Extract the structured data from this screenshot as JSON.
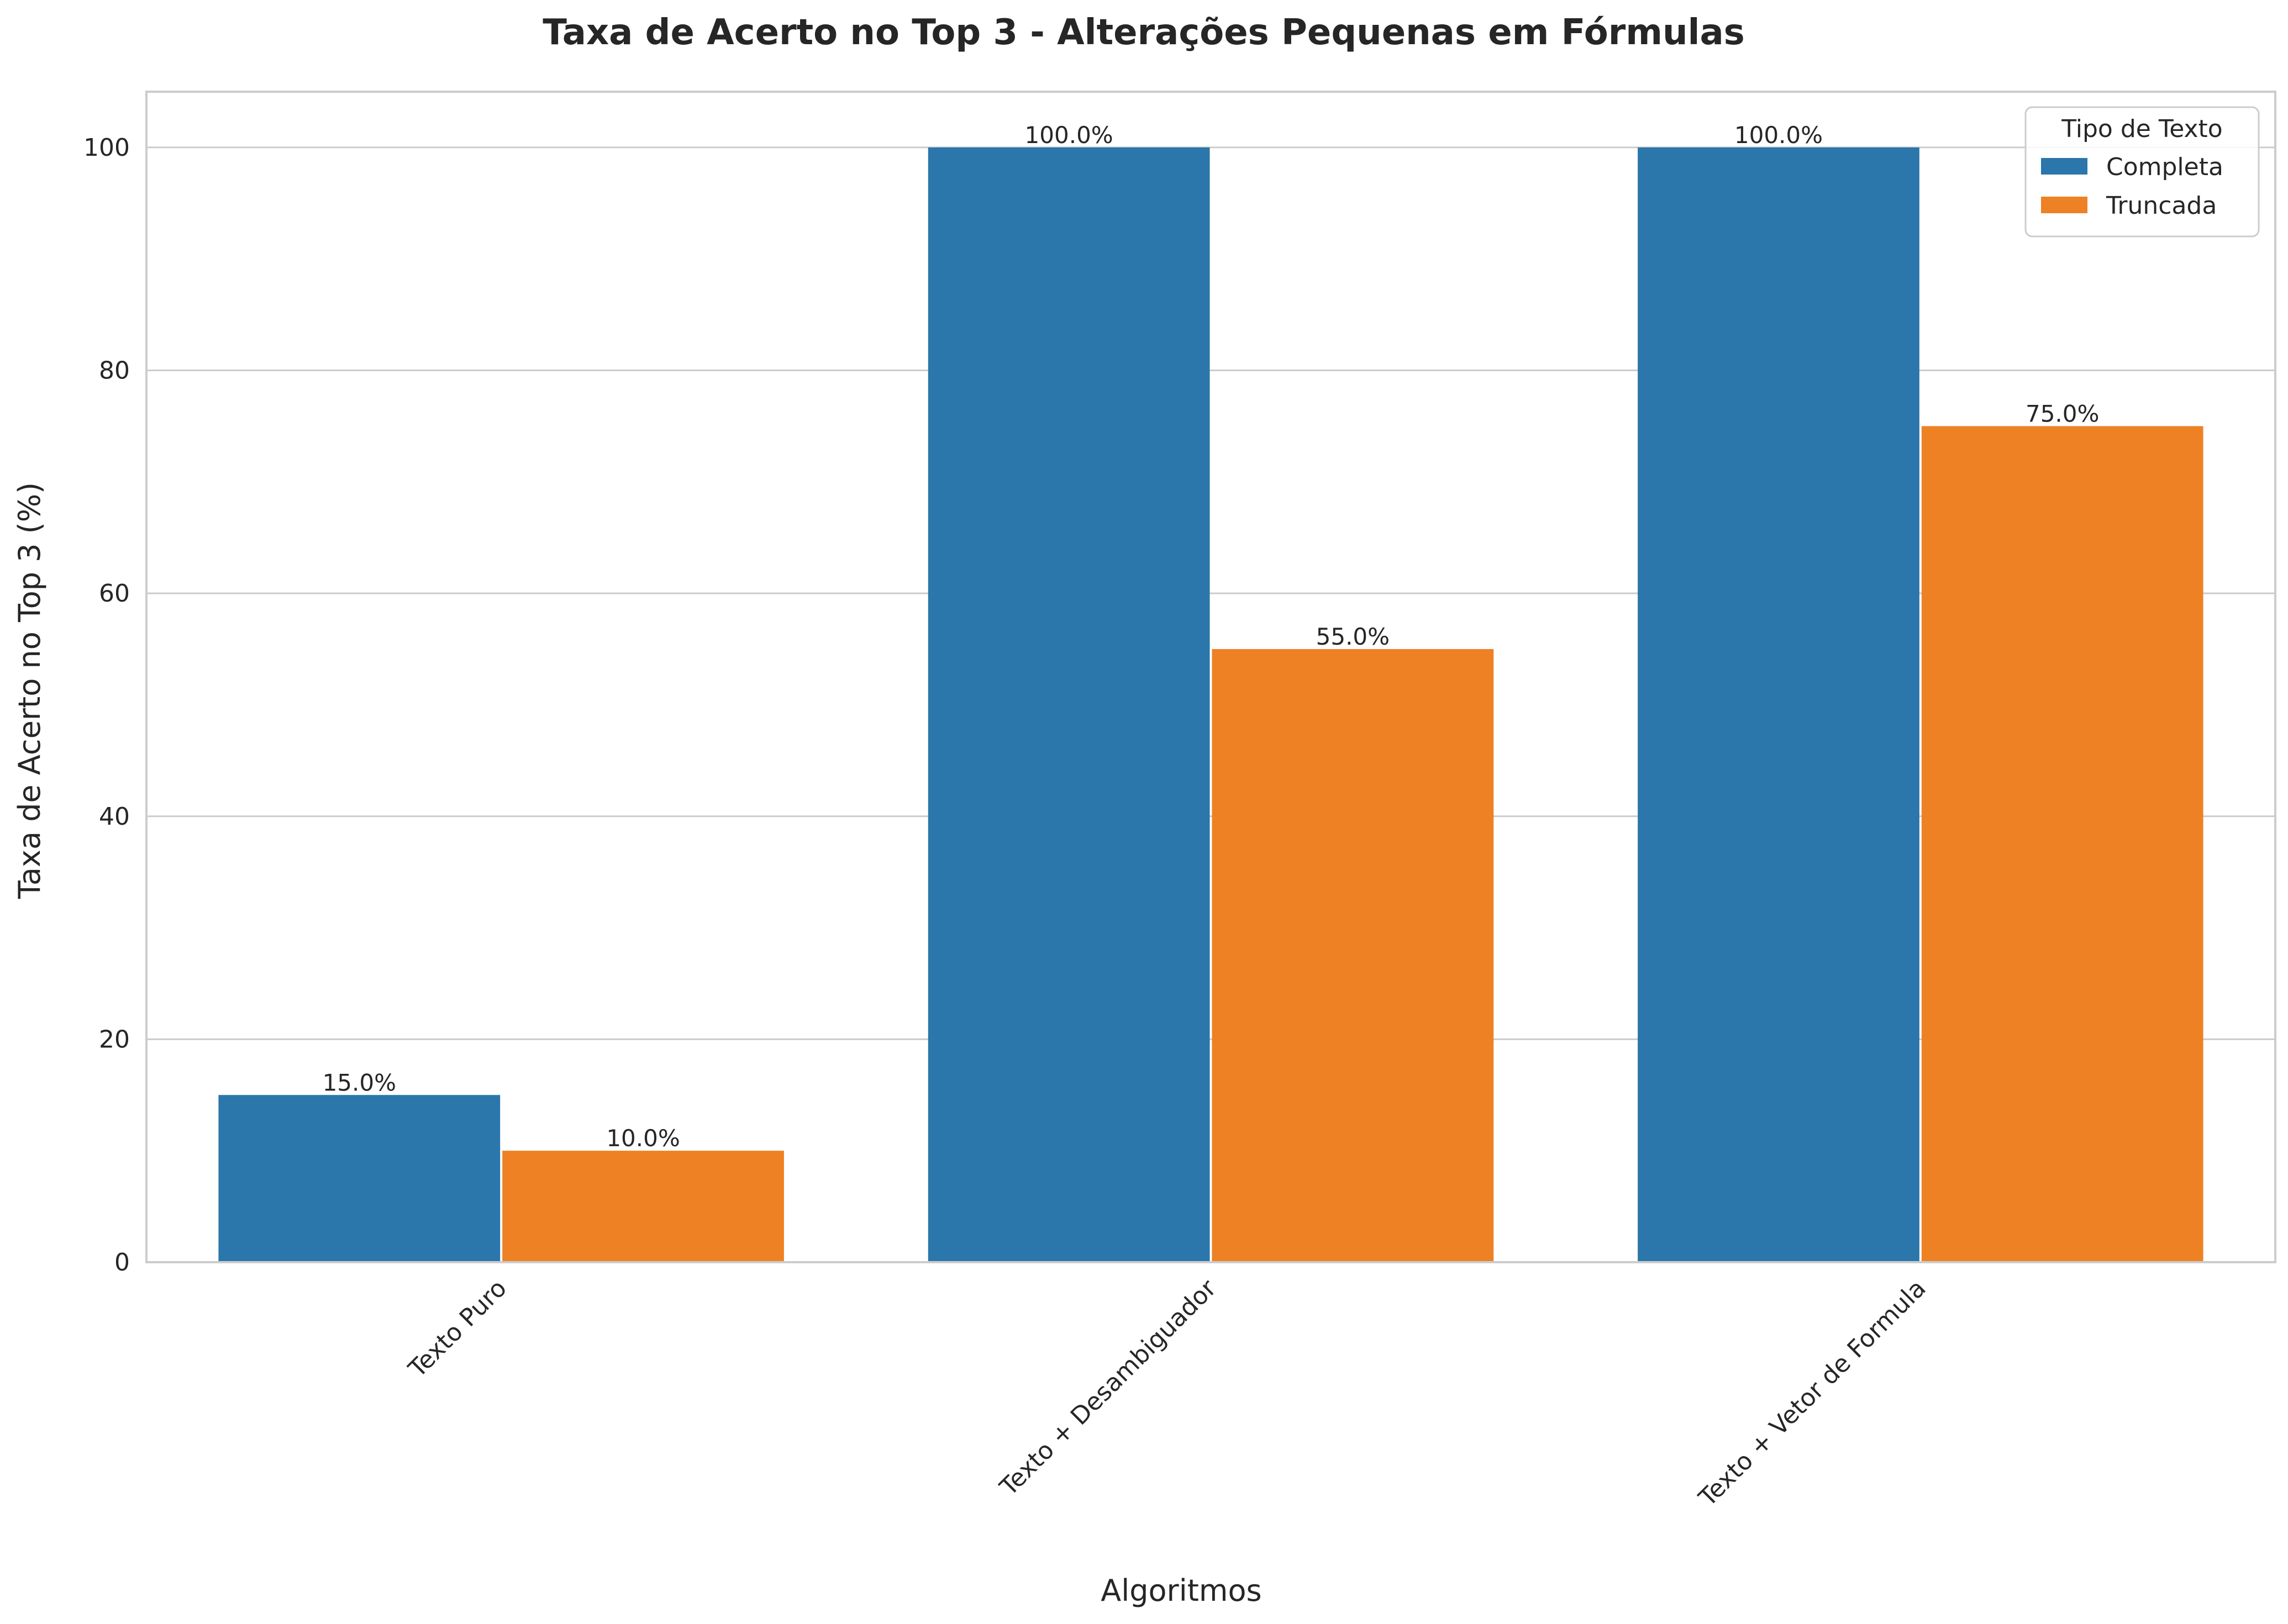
{
  "chart_data": {
    "type": "bar",
    "title": "Taxa de Acerto no Top 3 - Alterações Pequenas em Fórmulas",
    "xlabel": "Algoritmos",
    "ylabel": "Taxa de Acerto no Top 3 (%)",
    "categories": [
      "Texto Puro",
      "Texto + Desambiguador",
      "Texto + Vetor de Formula"
    ],
    "series": [
      {
        "name": "Completa",
        "values": [
          15.0,
          100.0,
          100.0
        ],
        "color": "#2b76aa"
      },
      {
        "name": "Truncada",
        "values": [
          10.0,
          55.0,
          75.0
        ],
        "color": "#ee8123"
      }
    ],
    "data_labels": [
      [
        "15.0%",
        "100.0%",
        "100.0%"
      ],
      [
        "10.0%",
        "55.0%",
        "75.0%"
      ]
    ],
    "ylim": [
      0,
      105
    ],
    "yticks": [
      0,
      20,
      40,
      60,
      80,
      100
    ],
    "ytick_labels": [
      "0",
      "20",
      "40",
      "60",
      "80",
      "100"
    ],
    "grid": "horizontal",
    "legend": {
      "title": "Tipo de Texto",
      "placement": "top-right"
    }
  }
}
